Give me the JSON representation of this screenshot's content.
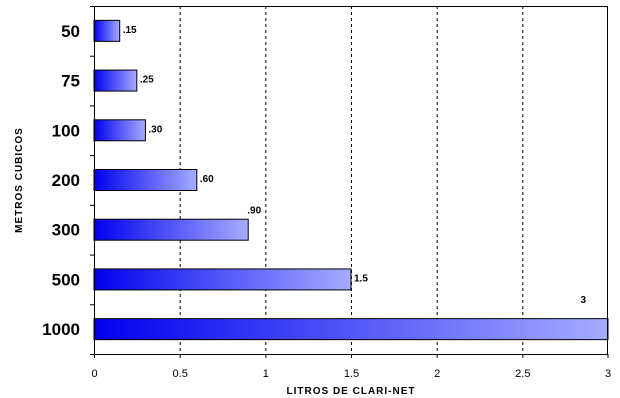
{
  "colors": {
    "bar_start": "#0000ee",
    "bar_end": "#a6acff",
    "axis": "#000000",
    "grid": "#000000",
    "background": "#ffffff"
  },
  "chart_data": {
    "type": "bar",
    "orientation": "horizontal",
    "categories": [
      "50",
      "75",
      "100",
      "200",
      "300",
      "500",
      "1000"
    ],
    "values": [
      0.15,
      0.25,
      0.3,
      0.6,
      0.9,
      1.5,
      3
    ],
    "value_labels": [
      ".15",
      ".25",
      ".30",
      ".60",
      ".90",
      "1.5",
      "3"
    ],
    "xlabel": "LITROS DE CLARI-NET",
    "ylabel": "METROS CUBICOS",
    "xlim": [
      0,
      3
    ],
    "xticks": [
      0,
      0.5,
      1,
      1.5,
      2,
      2.5,
      3
    ],
    "xtick_labels": [
      "0",
      "0.5",
      "1",
      "1.5",
      "2",
      "2.5",
      "3"
    ],
    "grid": "vertical dashed",
    "legend": "none"
  }
}
